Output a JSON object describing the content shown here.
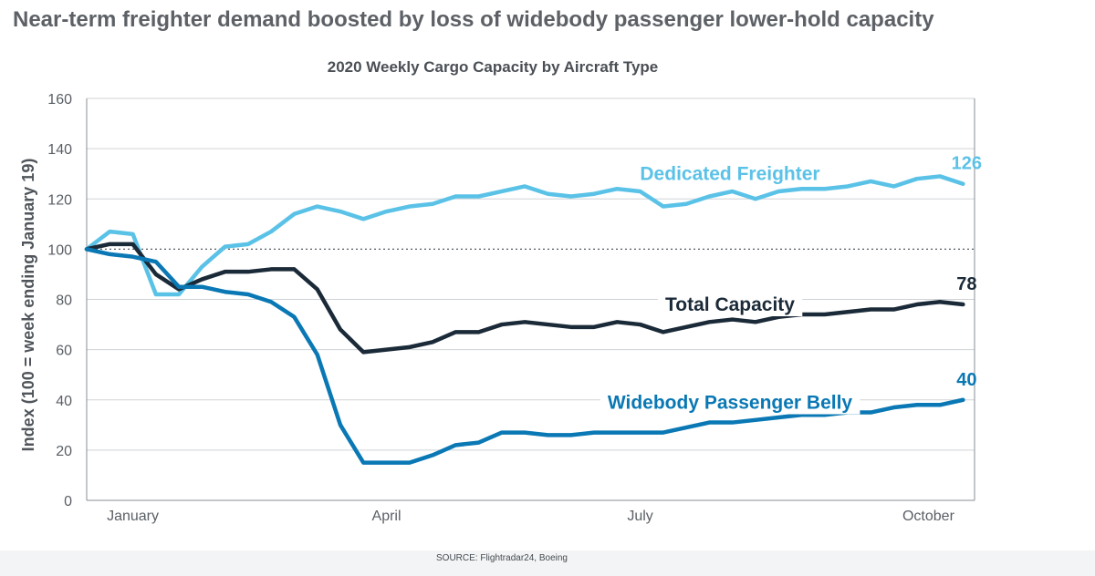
{
  "headline": "Near-term freighter demand boosted by loss of widebody passenger lower-hold capacity",
  "source": "SOURCE: Flightradar24, Boeing",
  "chart_data": {
    "type": "line",
    "title": "2020 Weekly Cargo Capacity by Aircraft Type",
    "ylabel": "Index (100 = week ending January 19)",
    "xlabel": "",
    "ylim": [
      0,
      160
    ],
    "yticks": [
      0,
      20,
      40,
      60,
      80,
      100,
      120,
      140,
      160
    ],
    "xlim": [
      0,
      38.5
    ],
    "x_ticks": [
      {
        "label": "January",
        "x": 2
      },
      {
        "label": "April",
        "x": 13
      },
      {
        "label": "July",
        "x": 24
      },
      {
        "label": "October",
        "x": 36.5
      }
    ],
    "reference_line": 100,
    "grid": true,
    "series": [
      {
        "name": "Dedicated Freighter",
        "color": "#5bc2e7",
        "end_label": "126",
        "values": [
          100,
          107,
          106,
          82,
          82,
          93,
          101,
          102,
          107,
          114,
          117,
          115,
          112,
          115,
          117,
          118,
          121,
          121,
          123,
          125,
          122,
          121,
          122,
          124,
          123,
          117,
          118,
          121,
          123,
          120,
          123,
          124,
          124,
          125,
          127,
          125,
          128,
          129,
          126
        ]
      },
      {
        "name": "Total Capacity",
        "color": "#1b2a38",
        "end_label": "78",
        "values": [
          100,
          102,
          102,
          90,
          84,
          88,
          91,
          91,
          92,
          92,
          84,
          68,
          59,
          60,
          61,
          63,
          67,
          67,
          70,
          71,
          70,
          69,
          69,
          71,
          70,
          67,
          69,
          71,
          72,
          71,
          73,
          74,
          74,
          75,
          76,
          76,
          78,
          79,
          78
        ]
      },
      {
        "name": "Widebody Passenger Belly",
        "color": "#0a78b4",
        "end_label": "40",
        "values": [
          100,
          98,
          97,
          95,
          85,
          85,
          83,
          82,
          79,
          73,
          58,
          30,
          15,
          15,
          15,
          18,
          22,
          23,
          27,
          27,
          26,
          26,
          27,
          27,
          27,
          27,
          29,
          31,
          31,
          32,
          33,
          34,
          34,
          35,
          35,
          37,
          38,
          38,
          40
        ]
      }
    ]
  }
}
